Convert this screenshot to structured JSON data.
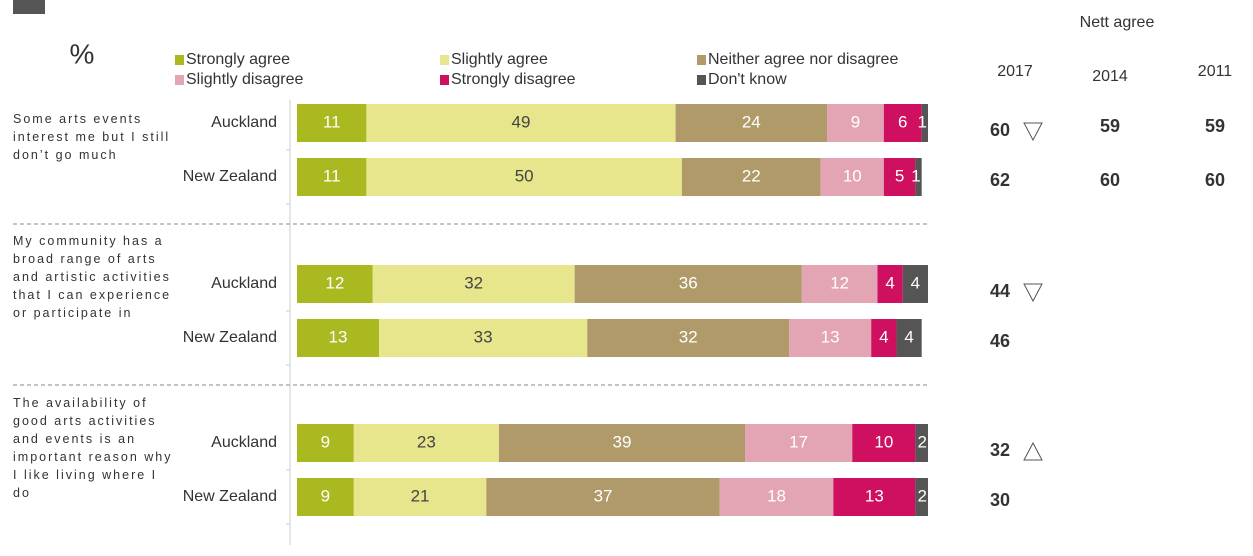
{
  "chart_data": {
    "type": "bar",
    "orientation": "horizontal",
    "stacked": true,
    "unit_label": "%",
    "groups": [
      {
        "label": "Some arts events interest me but I still don’t go much"
      },
      {
        "label": "My community has a broad range of arts and artistic activities that I can experience or participate in"
      },
      {
        "label": "The availability of good arts activities and events is an important reason why I like living where I do"
      }
    ],
    "categories": [
      "Auckland",
      "New Zealand",
      "Auckland",
      "New Zealand",
      "Auckland",
      "New Zealand"
    ],
    "xlim": [
      0,
      100
    ],
    "series": [
      {
        "name": "Strongly agree",
        "color": "#a9b91f",
        "label_color": "#ffffff",
        "values": [
          11,
          11,
          12,
          13,
          9,
          9
        ]
      },
      {
        "name": "Slightly agree",
        "color": "#e7e68c",
        "label_color": "#444444",
        "values": [
          49,
          50,
          32,
          33,
          23,
          21
        ]
      },
      {
        "name": "Neither agree nor disagree",
        "color": "#b19a6a",
        "label_color": "#ffffff",
        "values": [
          24,
          22,
          36,
          32,
          39,
          37
        ]
      },
      {
        "name": "Slightly disagree",
        "color": "#e3a4b4",
        "label_color": "#ffffff",
        "values": [
          9,
          10,
          12,
          13,
          17,
          18
        ]
      },
      {
        "name": "Strongly disagree",
        "color": "#cf0f60",
        "label_color": "#ffffff",
        "values": [
          6,
          5,
          4,
          4,
          10,
          13
        ]
      },
      {
        "name": "Don't know",
        "color": "#555555",
        "label_color": "#ffffff",
        "values": [
          1,
          1,
          4,
          4,
          2,
          2
        ]
      }
    ],
    "nett_agree": {
      "title": "Nett agree",
      "columns": [
        "2017",
        "2014",
        "2011"
      ],
      "values": [
        [
          60,
          59,
          59
        ],
        [
          62,
          60,
          60
        ],
        [
          44,
          null,
          null
        ],
        [
          46,
          null,
          null
        ],
        [
          32,
          null,
          null
        ],
        [
          30,
          null,
          null
        ]
      ],
      "markers": [
        "down",
        null,
        "down",
        null,
        "up",
        null
      ]
    }
  }
}
